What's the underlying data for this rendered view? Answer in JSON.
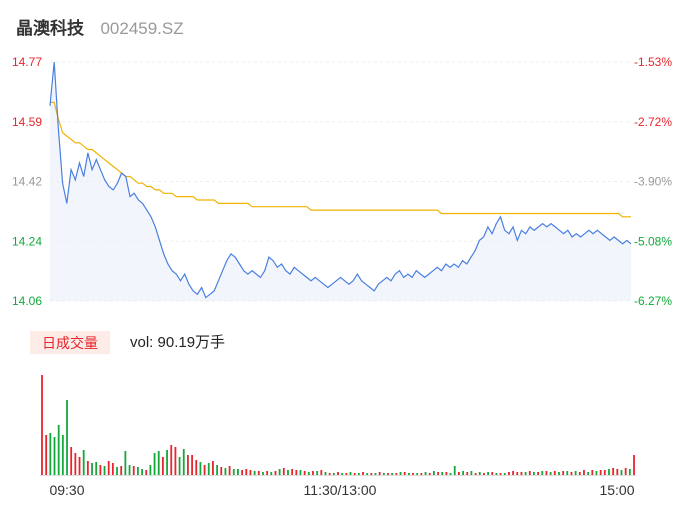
{
  "header": {
    "name": "晶澳科技",
    "code": "002459.SZ"
  },
  "colors": {
    "up": "#e8242c",
    "down": "#14a83b",
    "flat": "#999999",
    "price_line": "#4a7fe0",
    "avg_line": "#f0b400",
    "badge_bg": "#fdebe7"
  },
  "volume": {
    "badge": "日成交量",
    "label": "vol: 90.19万手"
  },
  "chart_data": [
    {
      "type": "line",
      "ylim": [
        14.06,
        14.77
      ],
      "y_ticks": [
        "14.77",
        "14.59",
        "14.42",
        "14.24",
        "14.06"
      ],
      "pct_ticks": [
        "-1.53%",
        "-2.72%",
        "-3.90%",
        "-5.08%",
        "-6.27%"
      ],
      "x_ticks": [
        "09:30",
        "11:30/13:00",
        "15:00"
      ],
      "series": [
        {
          "values": [
            14.64,
            14.77,
            14.57,
            14.41,
            14.35,
            14.45,
            14.42,
            14.47,
            14.43,
            14.5,
            14.45,
            14.48,
            14.45,
            14.42,
            14.4,
            14.39,
            14.41,
            14.44,
            14.43,
            14.37,
            14.38,
            14.36,
            14.35,
            14.33,
            14.31,
            14.28,
            14.24,
            14.2,
            14.17,
            14.15,
            14.14,
            14.12,
            14.14,
            14.11,
            14.09,
            14.08,
            14.1,
            14.07,
            14.08,
            14.09,
            14.12,
            14.15,
            14.18,
            14.2,
            14.19,
            14.17,
            14.15,
            14.14,
            14.15,
            14.14,
            14.13,
            14.15,
            14.19,
            14.18,
            14.16,
            14.17,
            14.15,
            14.14,
            14.16,
            14.15,
            14.14,
            14.13,
            14.12,
            14.13,
            14.12,
            14.11,
            14.1,
            14.11,
            14.12,
            14.13,
            14.12,
            14.11,
            14.12,
            14.14,
            14.12,
            14.11,
            14.1,
            14.09,
            14.11,
            14.12,
            14.13,
            14.12,
            14.14,
            14.15,
            14.13,
            14.14,
            14.13,
            14.15,
            14.14,
            14.13,
            14.14,
            14.15,
            14.16,
            14.15,
            14.17,
            14.16,
            14.17,
            14.16,
            14.18,
            14.17,
            14.19,
            14.21,
            14.24,
            14.25,
            14.28,
            14.26,
            14.29,
            14.31,
            14.27,
            14.26,
            14.28,
            14.24,
            14.27,
            14.26,
            14.28,
            14.27,
            14.28,
            14.29,
            14.28,
            14.29,
            14.28,
            14.27,
            14.26,
            14.27,
            14.25,
            14.26,
            14.25,
            14.26,
            14.27,
            14.26,
            14.27,
            14.26,
            14.25,
            14.24,
            14.25,
            14.24,
            14.23,
            14.24,
            14.23
          ]
        },
        {
          "values": [
            14.65,
            14.65,
            14.6,
            14.56,
            14.55,
            14.54,
            14.53,
            14.53,
            14.52,
            14.51,
            14.51,
            14.5,
            14.49,
            14.48,
            14.47,
            14.46,
            14.45,
            14.44,
            14.43,
            14.43,
            14.42,
            14.41,
            14.41,
            14.4,
            14.4,
            14.39,
            14.39,
            14.38,
            14.38,
            14.38,
            14.37,
            14.37,
            14.37,
            14.37,
            14.37,
            14.36,
            14.36,
            14.36,
            14.36,
            14.36,
            14.35,
            14.35,
            14.35,
            14.35,
            14.35,
            14.35,
            14.35,
            14.35,
            14.34,
            14.34,
            14.34,
            14.34,
            14.34,
            14.34,
            14.34,
            14.34,
            14.34,
            14.34,
            14.34,
            14.34,
            14.34,
            14.34,
            14.33,
            14.33,
            14.33,
            14.33,
            14.33,
            14.33,
            14.33,
            14.33,
            14.33,
            14.33,
            14.33,
            14.33,
            14.33,
            14.33,
            14.33,
            14.33,
            14.33,
            14.33,
            14.33,
            14.33,
            14.33,
            14.33,
            14.33,
            14.33,
            14.33,
            14.33,
            14.33,
            14.33,
            14.33,
            14.33,
            14.33,
            14.32,
            14.32,
            14.32,
            14.32,
            14.32,
            14.32,
            14.32,
            14.32,
            14.32,
            14.32,
            14.32,
            14.32,
            14.32,
            14.32,
            14.32,
            14.32,
            14.32,
            14.32,
            14.32,
            14.32,
            14.32,
            14.32,
            14.32,
            14.32,
            14.32,
            14.32,
            14.32,
            14.32,
            14.32,
            14.32,
            14.32,
            14.32,
            14.32,
            14.32,
            14.32,
            14.32,
            14.32,
            14.32,
            14.32,
            14.32,
            14.32,
            14.32,
            14.32,
            14.31,
            14.31,
            14.31
          ]
        }
      ]
    },
    {
      "type": "bar",
      "series": [
        {
          "values": [
            100,
            40,
            42,
            38,
            50,
            40,
            75,
            28,
            22,
            18,
            25,
            14,
            12,
            13,
            10,
            9,
            14,
            12,
            8,
            9,
            24,
            10,
            9,
            8,
            6,
            5,
            10,
            22,
            24,
            18,
            25,
            30,
            28,
            18,
            26,
            20,
            20,
            15,
            13,
            10,
            12,
            14,
            10,
            8,
            7,
            9,
            6,
            6,
            5,
            6,
            5,
            4,
            4,
            3,
            4,
            3,
            4,
            6,
            7,
            5,
            6,
            5,
            5,
            4,
            3,
            4,
            4,
            5,
            3,
            2,
            2,
            3,
            2,
            2,
            3,
            2,
            2,
            3,
            2,
            2,
            2,
            3,
            2,
            2,
            2,
            2,
            3,
            3,
            2,
            2,
            2,
            2,
            3,
            2,
            4,
            3,
            3,
            3,
            2,
            9,
            3,
            4,
            3,
            4,
            2,
            3,
            2,
            3,
            3,
            2,
            2,
            2,
            3,
            4,
            3,
            3,
            3,
            4,
            3,
            3,
            4,
            4,
            3,
            4,
            3,
            4,
            4,
            3,
            4,
            3,
            5,
            3,
            5,
            4,
            5,
            5,
            6,
            7,
            6,
            5,
            7,
            6,
            20
          ],
          "up": [
            1,
            1,
            0,
            0,
            0,
            0,
            0,
            1,
            1,
            1,
            0,
            1,
            0,
            0,
            1,
            0,
            1,
            1,
            0,
            1,
            0,
            0,
            1,
            0,
            0,
            1,
            0,
            0,
            0,
            1,
            0,
            1,
            1,
            0,
            0,
            1,
            1,
            1,
            0,
            1,
            0,
            1,
            0,
            1,
            0,
            1,
            0,
            0,
            1,
            1,
            1,
            0,
            1,
            0,
            1,
            0,
            1,
            0,
            1,
            0,
            1,
            1,
            0,
            1,
            0,
            1,
            0,
            1,
            0,
            1,
            0,
            1,
            0,
            1,
            0,
            1,
            0,
            1,
            0,
            1,
            0,
            1,
            0,
            1,
            0,
            1,
            0,
            1,
            0,
            1,
            0,
            1,
            0,
            1,
            0,
            1,
            0,
            1,
            0,
            0,
            1,
            0,
            1,
            0,
            1,
            0,
            1,
            0,
            1,
            0,
            1,
            0,
            1,
            1,
            1,
            1,
            0,
            1,
            0,
            1,
            0,
            1,
            0,
            1,
            0,
            1,
            0,
            1,
            0,
            1,
            1,
            0,
            1,
            0,
            1,
            1,
            0,
            1,
            1,
            0,
            1,
            0,
            1
          ]
        }
      ]
    }
  ]
}
